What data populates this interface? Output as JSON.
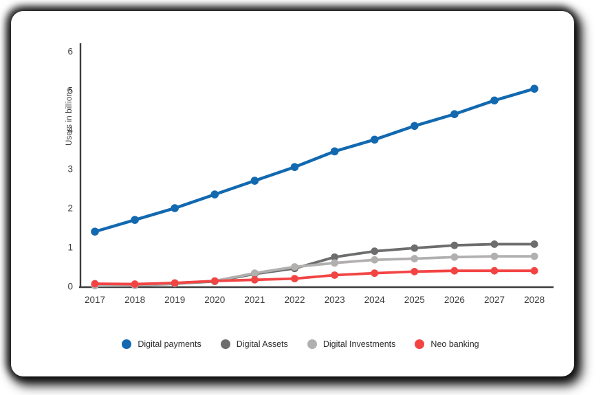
{
  "chart_data": {
    "type": "line",
    "title": "",
    "ylabel": "Users in billions",
    "xlabel": "",
    "categories": [
      "2017",
      "2018",
      "2019",
      "2020",
      "2021",
      "2022",
      "2023",
      "2024",
      "2025",
      "2026",
      "2027",
      "2028"
    ],
    "series": [
      {
        "name": "Digital payments",
        "color": "#1269b0",
        "values": [
          1.4,
          1.7,
          2.0,
          2.35,
          2.7,
          3.05,
          3.45,
          3.75,
          4.1,
          4.4,
          4.75,
          5.05
        ]
      },
      {
        "name": "Digital Assets",
        "color": "#6d6d6d",
        "values": [
          0.03,
          0.03,
          0.07,
          0.13,
          0.32,
          0.46,
          0.75,
          0.9,
          0.98,
          1.05,
          1.08,
          1.08
        ]
      },
      {
        "name": "Digital Investments",
        "color": "#b2afaf",
        "values": [
          0.02,
          0.03,
          0.08,
          0.14,
          0.34,
          0.5,
          0.6,
          0.68,
          0.71,
          0.75,
          0.77,
          0.77
        ]
      },
      {
        "name": "Neo banking",
        "color": "#f34444",
        "values": [
          0.07,
          0.06,
          0.09,
          0.14,
          0.17,
          0.2,
          0.29,
          0.34,
          0.38,
          0.4,
          0.4,
          0.4
        ]
      }
    ],
    "ylim": [
      0,
      6
    ],
    "yticks": [
      0,
      1,
      2,
      3,
      4,
      5,
      6
    ],
    "grid": false,
    "legend_position": "bottom",
    "axis_color": "#3c3c3c"
  }
}
